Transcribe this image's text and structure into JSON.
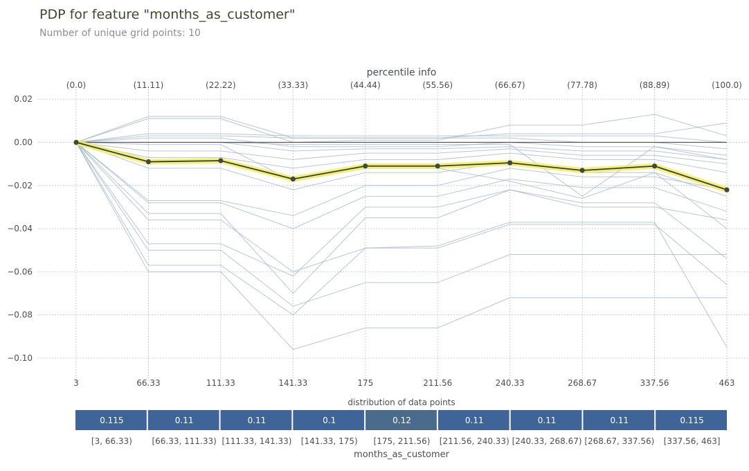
{
  "title": "PDP for feature \"months_as_customer\"",
  "subtitle": "Number of unique grid points: 10",
  "chart_data": {
    "type": "line",
    "top_axis_label": "percentile info",
    "percentile_labels": [
      "(0.0)",
      "(11.11)",
      "(22.22)",
      "(33.33)",
      "(44.44)",
      "(55.56)",
      "(66.67)",
      "(77.78)",
      "(88.89)",
      "(100.0)"
    ],
    "x_tick_labels": [
      "3",
      "66.33",
      "111.33",
      "141.33",
      "175",
      "211.56",
      "240.33",
      "268.67",
      "337.56",
      "463"
    ],
    "y_ticks": [
      0.02,
      0.0,
      -0.02,
      -0.04,
      -0.06,
      -0.08,
      -0.1
    ],
    "y_tick_labels": [
      "0.02",
      "0.00",
      "−0.02",
      "−0.04",
      "−0.06",
      "−0.08",
      "−0.10"
    ],
    "ylim": [
      -0.109,
      0.022
    ],
    "grid": true,
    "series": [
      {
        "values": [
          0,
          -0.009,
          -0.0085,
          -0.017,
          -0.011,
          -0.011,
          -0.0095,
          -0.013,
          -0.011,
          -0.022
        ]
      }
    ],
    "ice_lines": [
      [
        0,
        -0.036,
        -0.036,
        -0.06,
        -0.049,
        -0.049,
        -0.038,
        -0.038,
        -0.038,
        -0.066
      ],
      [
        0,
        -0.057,
        -0.057,
        -0.08,
        -0.049,
        -0.048,
        -0.037,
        -0.037,
        -0.037,
        -0.095
      ],
      [
        0,
        -0.06,
        -0.06,
        -0.096,
        -0.086,
        -0.086,
        -0.072,
        -0.072,
        -0.072,
        -0.072
      ],
      [
        0,
        -0.05,
        -0.05,
        -0.076,
        -0.065,
        -0.065,
        -0.052,
        -0.052,
        -0.052,
        -0.052
      ],
      [
        0,
        -0.033,
        -0.033,
        -0.07,
        -0.035,
        -0.035,
        -0.022,
        -0.03,
        -0.03,
        -0.036
      ],
      [
        0,
        -0.028,
        -0.028,
        -0.04,
        -0.025,
        -0.025,
        -0.017,
        -0.021,
        -0.021,
        -0.032
      ],
      [
        0,
        -0.047,
        -0.047,
        -0.062,
        -0.03,
        -0.03,
        -0.022,
        -0.028,
        -0.028,
        -0.054
      ],
      [
        0,
        -0.027,
        -0.027,
        -0.034,
        -0.02,
        -0.02,
        -0.012,
        -0.016,
        -0.016,
        -0.022
      ],
      [
        0,
        -0.012,
        -0.012,
        -0.022,
        -0.014,
        -0.014,
        -0.009,
        -0.014,
        -0.014,
        -0.025
      ],
      [
        0,
        -0.007,
        -0.007,
        -0.012,
        -0.008,
        -0.008,
        -0.005,
        -0.008,
        -0.008,
        -0.014
      ],
      [
        0,
        -0.004,
        -0.004,
        -0.008,
        -0.005,
        -0.005,
        -0.003,
        -0.006,
        -0.006,
        -0.01
      ],
      [
        0,
        0.0,
        0.0,
        -0.004,
        -0.003,
        -0.003,
        -0.002,
        -0.004,
        -0.004,
        -0.008
      ],
      [
        0,
        0.002,
        0.002,
        -0.002,
        -0.002,
        -0.002,
        0.0,
        -0.002,
        -0.002,
        -0.006
      ],
      [
        0,
        0.003,
        0.003,
        0.002,
        0.002,
        0.002,
        0.002,
        0.0,
        0.0,
        -0.003
      ],
      [
        0,
        0.004,
        0.004,
        0.003,
        0.003,
        0.003,
        0.003,
        0.003,
        0.003,
        0.0
      ],
      [
        0,
        0.011,
        0.011,
        0.0,
        0.001,
        0.001,
        0.008,
        0.008,
        0.013,
        0.003
      ],
      [
        0,
        0.012,
        0.012,
        0.002,
        0.002,
        0.002,
        0.004,
        0.004,
        0.004,
        0.009
      ],
      [
        0,
        0.0,
        0.0,
        -0.001,
        -0.001,
        -0.001,
        -0.001,
        -0.025,
        -0.002,
        -0.008
      ],
      [
        0,
        -0.001,
        -0.001,
        -0.018,
        -0.012,
        -0.012,
        -0.018,
        -0.026,
        -0.014,
        -0.04
      ]
    ],
    "distribution": {
      "title": "distribution of data points",
      "xlabel": "months_as_customer",
      "values": [
        "0.115",
        "0.11",
        "0.11",
        "0.1",
        "0.12",
        "0.11",
        "0.11",
        "0.11",
        "0.115"
      ],
      "bins": [
        "[3, 66.33)",
        "[66.33, 111.33)",
        "[111.33, 141.33)",
        "[141.33, 175)",
        "[175, 211.56)",
        "[211.56, 240.33)",
        "[240.33, 268.67)",
        "[268.67, 337.56)",
        "[337.56, 463]"
      ],
      "colors": [
        "#3f6497",
        "#3f6497",
        "#3f6497",
        "#3f6497",
        "#4a6b8c",
        "#3f6497",
        "#3f6497",
        "#3f6497",
        "#3f6497"
      ]
    },
    "colors": {
      "pdp_line": "#3b3b3b",
      "pdp_halo": "#f0ee62",
      "ice": "#9fb3c8",
      "grid": "#b8c3cc",
      "zero_line": "#555555"
    }
  }
}
